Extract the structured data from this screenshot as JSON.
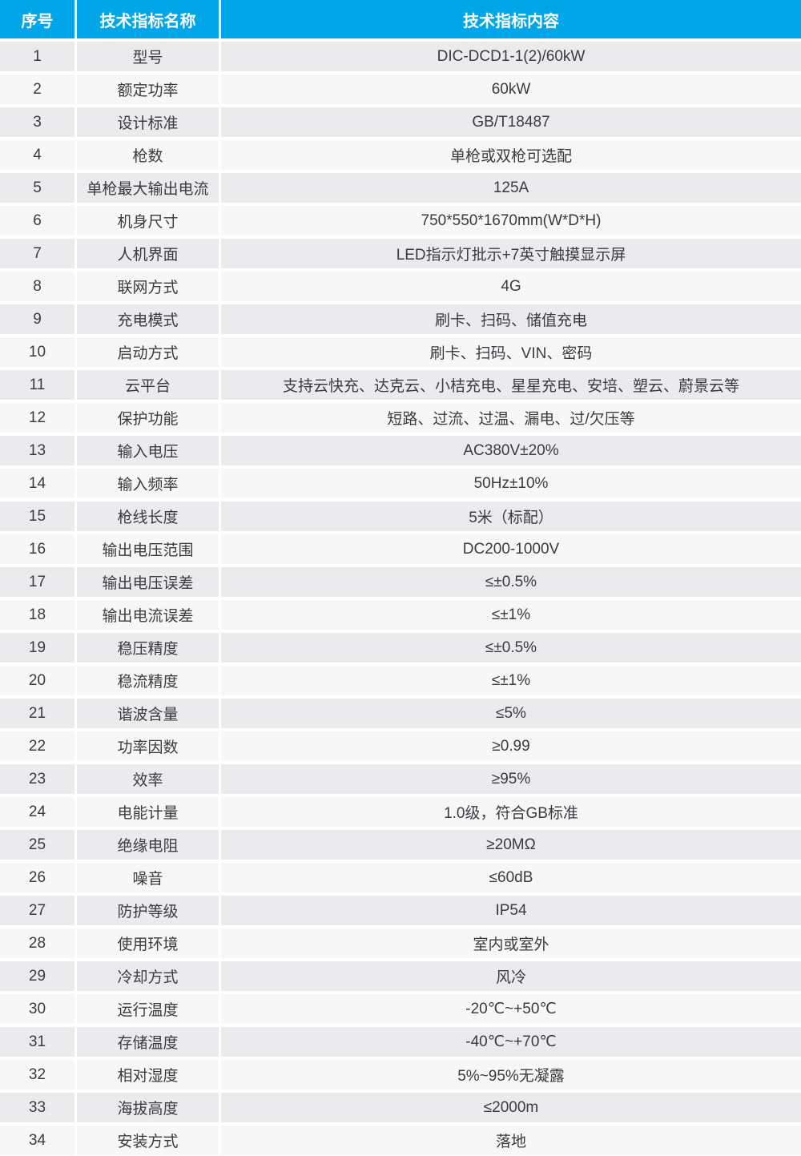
{
  "table": {
    "headers": [
      "序号",
      "技术指标名称",
      "技术指标内容"
    ],
    "colors": {
      "header_bg": "#00a6e8",
      "header_text": "#ffffff",
      "row_odd_bg": "#ebebed",
      "row_even_bg": "#f7f7f8",
      "cell_text": "#3b3b3d"
    },
    "rows": [
      {
        "no": "1",
        "name": "型号",
        "value": "DIC-DCD1-1(2)/60kW"
      },
      {
        "no": "2",
        "name": "额定功率",
        "value": "60kW"
      },
      {
        "no": "3",
        "name": "设计标准",
        "value": "GB/T18487"
      },
      {
        "no": "4",
        "name": "枪数",
        "value": "单枪或双枪可选配"
      },
      {
        "no": "5",
        "name": "单枪最大输出电流",
        "value": "125A"
      },
      {
        "no": "6",
        "name": "机身尺寸",
        "value": "750*550*1670mm(W*D*H)"
      },
      {
        "no": "7",
        "name": "人机界面",
        "value": "LED指示灯批示+7英寸触摸显示屏"
      },
      {
        "no": "8",
        "name": "联网方式",
        "value": "4G"
      },
      {
        "no": "9",
        "name": "充电模式",
        "value": "刷卡、扫码、储值充电"
      },
      {
        "no": "10",
        "name": "启动方式",
        "value": "刷卡、扫码、VIN、密码"
      },
      {
        "no": "11",
        "name": "云平台",
        "value": "支持云快充、达克云、小桔充电、星星充电、安培、塑云、蔚景云等"
      },
      {
        "no": "12",
        "name": "保护功能",
        "value": "短路、过流、过温、漏电、过/欠压等"
      },
      {
        "no": "13",
        "name": "输入电压",
        "value": "AC380V±20%"
      },
      {
        "no": "14",
        "name": "输入频率",
        "value": "50Hz±10%"
      },
      {
        "no": "15",
        "name": "枪线长度",
        "value": "5米（标配）"
      },
      {
        "no": "16",
        "name": "输出电压范围",
        "value": "DC200-1000V"
      },
      {
        "no": "17",
        "name": "输出电压误差",
        "value": "≤±0.5%"
      },
      {
        "no": "18",
        "name": "输出电流误差",
        "value": "≤±1%"
      },
      {
        "no": "19",
        "name": "稳压精度",
        "value": "≤±0.5%"
      },
      {
        "no": "20",
        "name": "稳流精度",
        "value": "≤±1%"
      },
      {
        "no": "21",
        "name": "谐波含量",
        "value": "≤5%"
      },
      {
        "no": "22",
        "name": "功率因数",
        "value": "≥0.99"
      },
      {
        "no": "23",
        "name": "效率",
        "value": "≥95%"
      },
      {
        "no": "24",
        "name": "电能计量",
        "value": "1.0级，符合GB标准"
      },
      {
        "no": "25",
        "name": "绝缘电阻",
        "value": "≥20MΩ"
      },
      {
        "no": "26",
        "name": "噪音",
        "value": "≤60dB"
      },
      {
        "no": "27",
        "name": "防护等级",
        "value": "IP54"
      },
      {
        "no": "28",
        "name": "使用环境",
        "value": "室内或室外"
      },
      {
        "no": "29",
        "name": "冷却方式",
        "value": "风冷"
      },
      {
        "no": "30",
        "name": "运行温度",
        "value": "-20℃~+50℃"
      },
      {
        "no": "31",
        "name": "存储温度",
        "value": "-40℃~+70℃"
      },
      {
        "no": "32",
        "name": "相对湿度",
        "value": "5%~95%无凝露"
      },
      {
        "no": "33",
        "name": "海拔高度",
        "value": "≤2000m"
      },
      {
        "no": "34",
        "name": "安装方式",
        "value": "落地"
      }
    ]
  }
}
